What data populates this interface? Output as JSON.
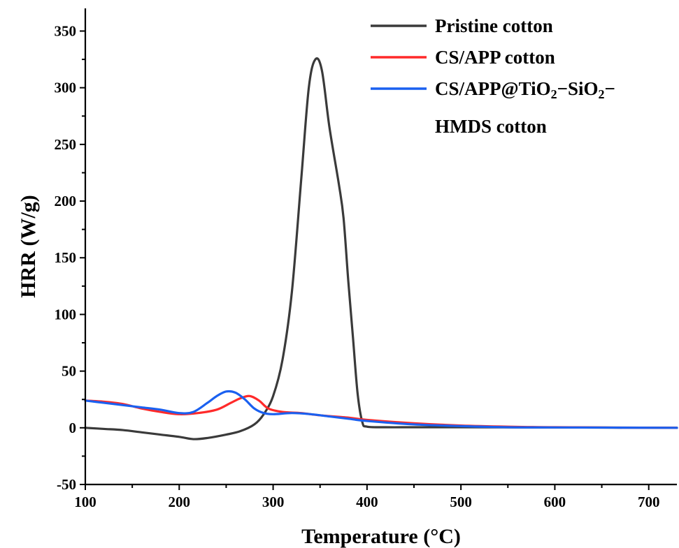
{
  "chart_data": {
    "type": "line",
    "xlabel": "Temperature (°C)",
    "ylabel": "HRR (W/g)",
    "xlim": [
      100,
      730
    ],
    "ylim": [
      -50,
      370
    ],
    "xticks": [
      100,
      200,
      300,
      400,
      500,
      600,
      700
    ],
    "yticks": [
      -50,
      0,
      50,
      100,
      150,
      200,
      250,
      300,
      350
    ],
    "legend_position": "top-right",
    "series": [
      {
        "name": "Pristine cotton",
        "color": "#3a3a3a",
        "x": [
          100,
          120,
          140,
          160,
          180,
          200,
          215,
          230,
          250,
          265,
          280,
          290,
          300,
          310,
          320,
          330,
          338,
          345,
          352,
          360,
          370,
          375,
          380,
          385,
          390,
          395,
          400,
          420,
          450,
          500,
          600,
          730
        ],
        "y": [
          0,
          -1,
          -2,
          -4,
          -6,
          -8,
          -10,
          -9,
          -6,
          -3,
          3,
          12,
          28,
          60,
          120,
          220,
          300,
          325,
          315,
          265,
          215,
          185,
          130,
          80,
          30,
          5,
          1,
          0.5,
          0.5,
          0.5,
          0.3,
          0
        ]
      },
      {
        "name": "CS/APP cotton",
        "color": "#ff2a2a",
        "x": [
          100,
          120,
          140,
          160,
          180,
          200,
          220,
          240,
          255,
          265,
          275,
          285,
          295,
          310,
          330,
          350,
          380,
          400,
          450,
          500,
          550,
          600,
          730
        ],
        "y": [
          24,
          23,
          21,
          17,
          14,
          12,
          13,
          16,
          22,
          26,
          28,
          24,
          17,
          14,
          13,
          11,
          9,
          7,
          4,
          2,
          1,
          0.5,
          0
        ]
      },
      {
        "name": "CS/APP@TiO₂−SiO₂−HMDS cotton",
        "color": "#1a60f0",
        "x": [
          100,
          120,
          140,
          160,
          180,
          200,
          215,
          230,
          240,
          250,
          260,
          270,
          280,
          290,
          300,
          320,
          340,
          360,
          380,
          400,
          450,
          500,
          550,
          600,
          730
        ],
        "y": [
          24,
          22,
          20,
          18,
          16,
          13,
          14,
          22,
          28,
          32,
          31,
          25,
          17,
          13,
          12,
          13,
          12,
          10,
          8,
          6,
          3,
          1.5,
          0.5,
          0.3,
          0
        ]
      }
    ],
    "legend_lines": [
      [
        "Pristine cotton"
      ],
      [
        "CS/APP cotton"
      ],
      [
        "CS/APP@TiO",
        "2",
        "−SiO",
        "2",
        "−"
      ],
      [
        "HMDS cotton"
      ]
    ]
  }
}
